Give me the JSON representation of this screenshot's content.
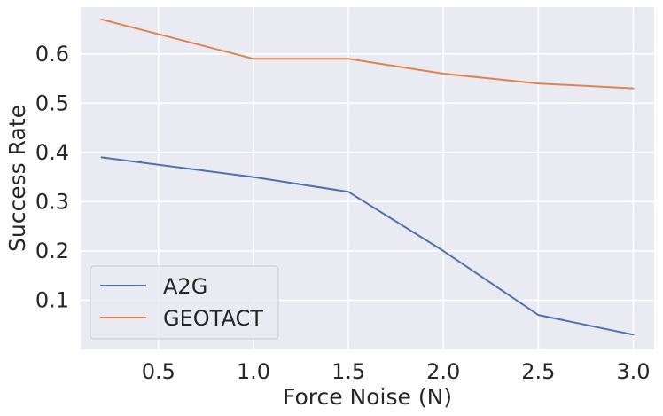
{
  "chart_data": {
    "type": "line",
    "title": "",
    "xlabel": "Force Noise (N)",
    "ylabel": "Success Rate",
    "x": [
      0.2,
      1.0,
      1.5,
      2.0,
      2.5,
      3.0
    ],
    "xlim": [
      0.09,
      3.11
    ],
    "ylim": [
      0.0,
      0.695
    ],
    "xticks": [
      0.5,
      1.0,
      1.5,
      2.0,
      2.5,
      3.0
    ],
    "xtick_labels": [
      "0.5",
      "1.0",
      "1.5",
      "2.0",
      "2.5",
      "3.0"
    ],
    "yticks": [
      0.1,
      0.2,
      0.3,
      0.4,
      0.5,
      0.6
    ],
    "ytick_labels": [
      "0.1",
      "0.2",
      "0.3",
      "0.4",
      "0.5",
      "0.6"
    ],
    "grid": true,
    "legend_position": "lower-left",
    "background_color": "#eaeaf2",
    "series": [
      {
        "name": "A2G",
        "color": "#4c72b0",
        "values": [
          0.39,
          0.35,
          0.32,
          0.2,
          0.07,
          0.03
        ]
      },
      {
        "name": "GEOTACT",
        "color": "#dd8452",
        "values": [
          0.67,
          0.59,
          0.59,
          0.56,
          0.54,
          0.53
        ]
      }
    ]
  }
}
